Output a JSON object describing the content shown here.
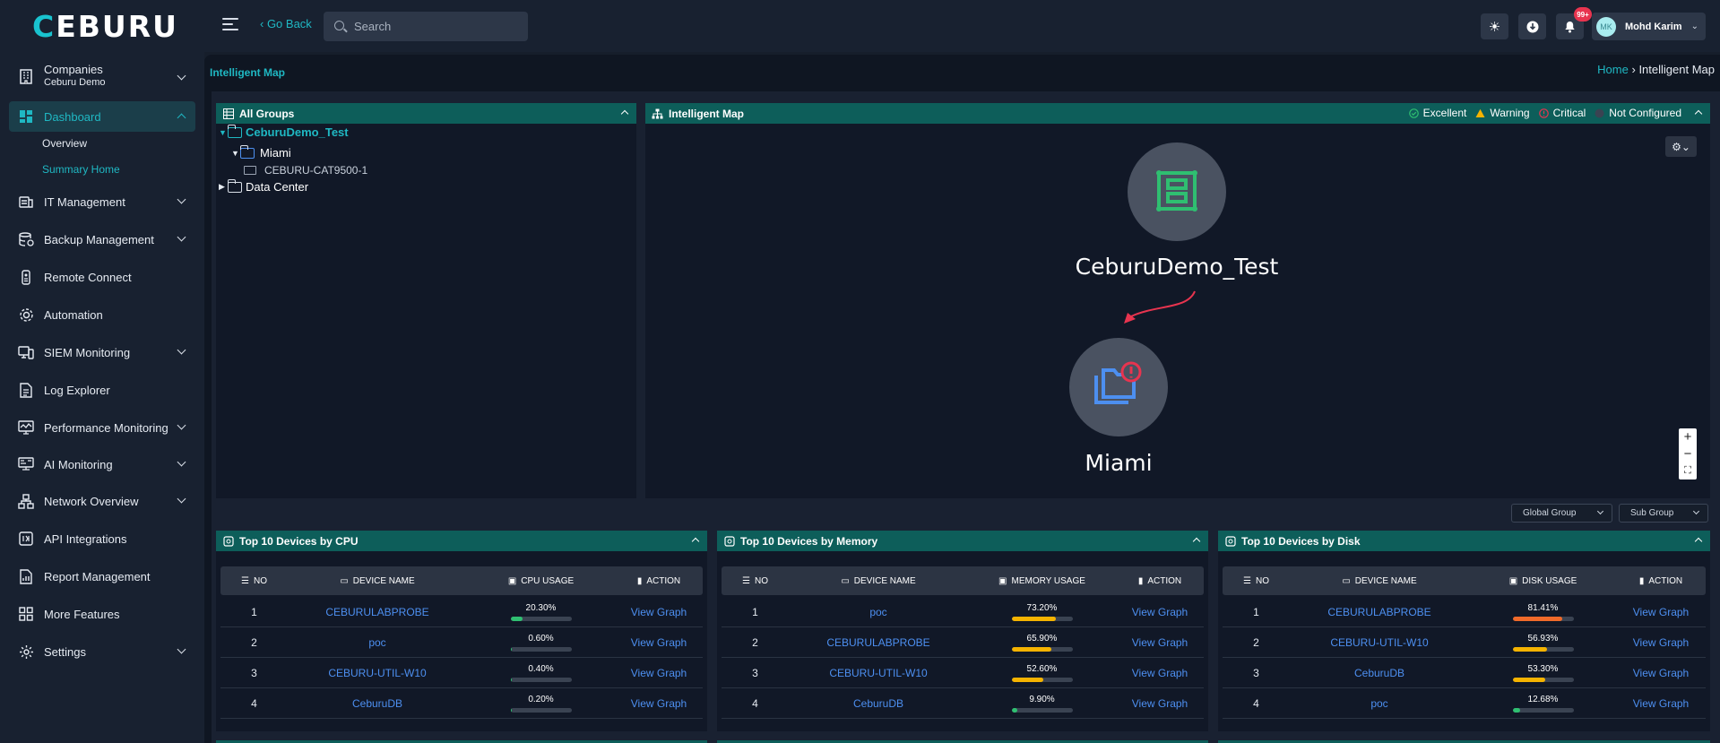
{
  "header": {
    "logo_text": "CEBURU",
    "go_back": "‹ Go Back",
    "search_placeholder": "Search",
    "notification_badge": "99+",
    "user": {
      "initials": "MK",
      "name": "Mohd Karim"
    }
  },
  "sidebar": {
    "companies": {
      "label": "Companies",
      "sub": "Ceburu Demo"
    },
    "items": [
      {
        "label": "Dashboard",
        "icon": "dashboard-icon"
      },
      {
        "label": "IT Management",
        "icon": "it-management-icon"
      },
      {
        "label": "Backup Management",
        "icon": "backup-icon"
      },
      {
        "label": "Remote Connect",
        "icon": "remote-icon"
      },
      {
        "label": "Automation",
        "icon": "gear-icon"
      },
      {
        "label": "SIEM Monitoring",
        "icon": "siem-icon"
      },
      {
        "label": "Log Explorer",
        "icon": "document-icon"
      },
      {
        "label": "Performance Monitoring",
        "icon": "monitor-icon"
      },
      {
        "label": "AI Monitoring",
        "icon": "ai-icon"
      },
      {
        "label": "Network Overview",
        "icon": "network-icon"
      },
      {
        "label": "API Integrations",
        "icon": "api-icon"
      },
      {
        "label": "Report Management",
        "icon": "report-icon"
      },
      {
        "label": "More Features",
        "icon": "grid-icon"
      },
      {
        "label": "Settings",
        "icon": "settings-icon"
      }
    ],
    "dashboard_sub": [
      "Overview",
      "Summary Home"
    ]
  },
  "page": {
    "title": "Intelligent Map",
    "breadcrumb_home": "Home",
    "breadcrumb_sep": "›",
    "breadcrumb_current": "Intelligent Map"
  },
  "groups_panel": {
    "title": "All Groups",
    "tree": {
      "root": "CeburuDemo_Test",
      "child": "Miami",
      "device": "CEBURU-CAT9500-1",
      "other": "Data Center"
    }
  },
  "map_panel": {
    "title": "Intelligent Map",
    "legend": [
      "Excellent",
      "Warning",
      "Critical",
      "Not Configured"
    ],
    "legend_colors": [
      "#2fbf71",
      "#f5b300",
      "#e8344f",
      "#3a4352"
    ],
    "nodes": [
      "CeburuDemo_Test",
      "Miami"
    ]
  },
  "filters": {
    "global_group": "Global Group",
    "sub_group": "Sub Group"
  },
  "tables": [
    {
      "title": "Top 10 Devices by CPU",
      "columns": [
        "NO",
        "DEVICE NAME",
        "CPU USAGE",
        "ACTION"
      ],
      "rows": [
        {
          "no": "1",
          "device": "CEBURULABPROBE",
          "usage": "20.30%",
          "pct": 20.3,
          "action": "View Graph"
        },
        {
          "no": "2",
          "device": "poc",
          "usage": "0.60%",
          "pct": 0.6,
          "action": "View Graph"
        },
        {
          "no": "3",
          "device": "CEBURU-UTIL-W10",
          "usage": "0.40%",
          "pct": 0.4,
          "action": "View Graph"
        },
        {
          "no": "4",
          "device": "CeburuDB",
          "usage": "0.20%",
          "pct": 0.2,
          "action": "View Graph"
        }
      ]
    },
    {
      "title": "Top 10 Devices by Memory",
      "columns": [
        "NO",
        "DEVICE NAME",
        "MEMORY USAGE",
        "ACTION"
      ],
      "rows": [
        {
          "no": "1",
          "device": "poc",
          "usage": "73.20%",
          "pct": 73.2,
          "action": "View Graph"
        },
        {
          "no": "2",
          "device": "CEBURULABPROBE",
          "usage": "65.90%",
          "pct": 65.9,
          "action": "View Graph"
        },
        {
          "no": "3",
          "device": "CEBURU-UTIL-W10",
          "usage": "52.60%",
          "pct": 52.6,
          "action": "View Graph"
        },
        {
          "no": "4",
          "device": "CeburuDB",
          "usage": "9.90%",
          "pct": 9.9,
          "action": "View Graph"
        }
      ]
    },
    {
      "title": "Top 10 Devices by Disk",
      "columns": [
        "NO",
        "DEVICE NAME",
        "DISK USAGE",
        "ACTION"
      ],
      "rows": [
        {
          "no": "1",
          "device": "CEBURULABPROBE",
          "usage": "81.41%",
          "pct": 81.41,
          "action": "View Graph"
        },
        {
          "no": "2",
          "device": "CEBURU-UTIL-W10",
          "usage": "56.93%",
          "pct": 56.93,
          "action": "View Graph"
        },
        {
          "no": "3",
          "device": "CeburuDB",
          "usage": "53.30%",
          "pct": 53.3,
          "action": "View Graph"
        },
        {
          "no": "4",
          "device": "poc",
          "usage": "12.68%",
          "pct": 12.68,
          "action": "View Graph"
        }
      ]
    }
  ],
  "colors": {
    "accent": "#1fb8c3",
    "panel_header": "#0d5e5a",
    "link": "#4d8ff0",
    "bar_green": "#2fbf71",
    "bar_yellow": "#f5b300",
    "bar_orange": "#f06a2a"
  }
}
